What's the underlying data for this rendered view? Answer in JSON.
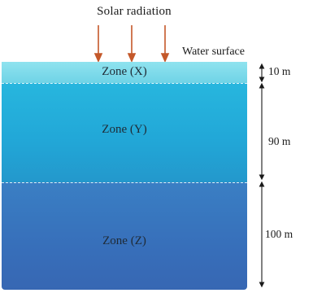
{
  "title": "Solar radiation",
  "surface_label": "Water surface",
  "zones": {
    "x": "Zone (X)",
    "y": "Zone (Y)",
    "z": "Zone (Z)"
  },
  "depths": {
    "zone_x": "10 m",
    "zone_y": "90 m",
    "zone_z": "100 m"
  },
  "colors": {
    "arrow": "#c4582a",
    "zone_x": "#7fdceb",
    "zone_y": "#25acdb",
    "zone_z": "#376fba"
  }
}
